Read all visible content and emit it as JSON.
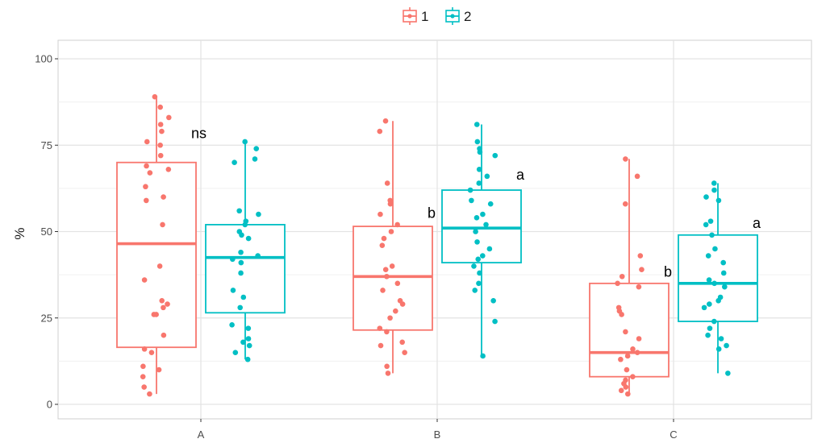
{
  "chart_data": {
    "type": "boxplot",
    "ylabel": "%",
    "xlabel": "",
    "ylim": [
      0,
      100
    ],
    "y_ticks": [
      "0",
      "25",
      "50",
      "75",
      "100"
    ],
    "categories": [
      "A",
      "B",
      "C"
    ],
    "grid": true,
    "legend_position": "top",
    "series": [
      {
        "name": "1",
        "color": "#f8766d",
        "boxes": [
          {
            "category": "A",
            "whisker_low": 3,
            "q1": 16.5,
            "median": 46.5,
            "q3": 70,
            "whisker_high": 89
          },
          {
            "category": "B",
            "whisker_low": 9,
            "q1": 21.5,
            "median": 37,
            "q3": 51.5,
            "whisker_high": 82
          },
          {
            "category": "C",
            "whisker_low": 3,
            "q1": 8,
            "median": 15,
            "q3": 35,
            "whisker_high": 71
          }
        ],
        "points": {
          "A": [
            89,
            86,
            83,
            81,
            79,
            76,
            75,
            72,
            69,
            68,
            67,
            63,
            60,
            59,
            52,
            40,
            36,
            30,
            29,
            28,
            26,
            26,
            20,
            16,
            15,
            11,
            10,
            8,
            5,
            3
          ],
          "B": [
            82,
            79,
            64,
            59,
            58,
            55,
            52,
            50,
            48,
            46,
            40,
            39,
            37,
            35,
            33,
            30,
            29,
            27,
            25,
            22,
            21,
            18,
            17,
            15,
            11,
            9
          ],
          "C": [
            71,
            66,
            58,
            43,
            39,
            37,
            35,
            34,
            28,
            27,
            26,
            21,
            19,
            16,
            15,
            14,
            13,
            10,
            8,
            7,
            6,
            5,
            4,
            3
          ]
        }
      },
      {
        "name": "2",
        "color": "#00bfc4",
        "boxes": [
          {
            "category": "A",
            "whisker_low": 13,
            "q1": 26.5,
            "median": 42.5,
            "q3": 52,
            "whisker_high": 76
          },
          {
            "category": "B",
            "whisker_low": 14,
            "q1": 41,
            "median": 51,
            "q3": 62,
            "whisker_high": 81
          },
          {
            "category": "C",
            "whisker_low": 9,
            "q1": 24,
            "median": 35,
            "q3": 49,
            "whisker_high": 64
          }
        ],
        "points": {
          "A": [
            76,
            74,
            71,
            70,
            56,
            55,
            53,
            52,
            50,
            49,
            48,
            44,
            43,
            42,
            41,
            38,
            33,
            31,
            28,
            23,
            22,
            19,
            18,
            17,
            15,
            13
          ],
          "B": [
            81,
            76,
            74,
            73,
            72,
            68,
            66,
            64,
            62,
            59,
            58,
            55,
            54,
            52,
            50,
            47,
            45,
            43,
            42,
            40,
            38,
            35,
            33,
            30,
            24,
            14
          ],
          "C": [
            64,
            62,
            60,
            59,
            53,
            52,
            49,
            45,
            43,
            41,
            38,
            36,
            35,
            34,
            31,
            30,
            29,
            28,
            24,
            22,
            20,
            19,
            17,
            16,
            9
          ]
        }
      }
    ],
    "annotations": [
      {
        "text": "ns",
        "category": "A",
        "group": 1,
        "y": 77
      },
      {
        "text": "b",
        "category": "B",
        "group": 1,
        "y": 54
      },
      {
        "text": "a",
        "category": "B",
        "group": 2,
        "y": 65
      },
      {
        "text": "b",
        "category": "C",
        "group": 1,
        "y": 37
      },
      {
        "text": "a",
        "category": "C",
        "group": 2,
        "y": 51
      }
    ]
  }
}
